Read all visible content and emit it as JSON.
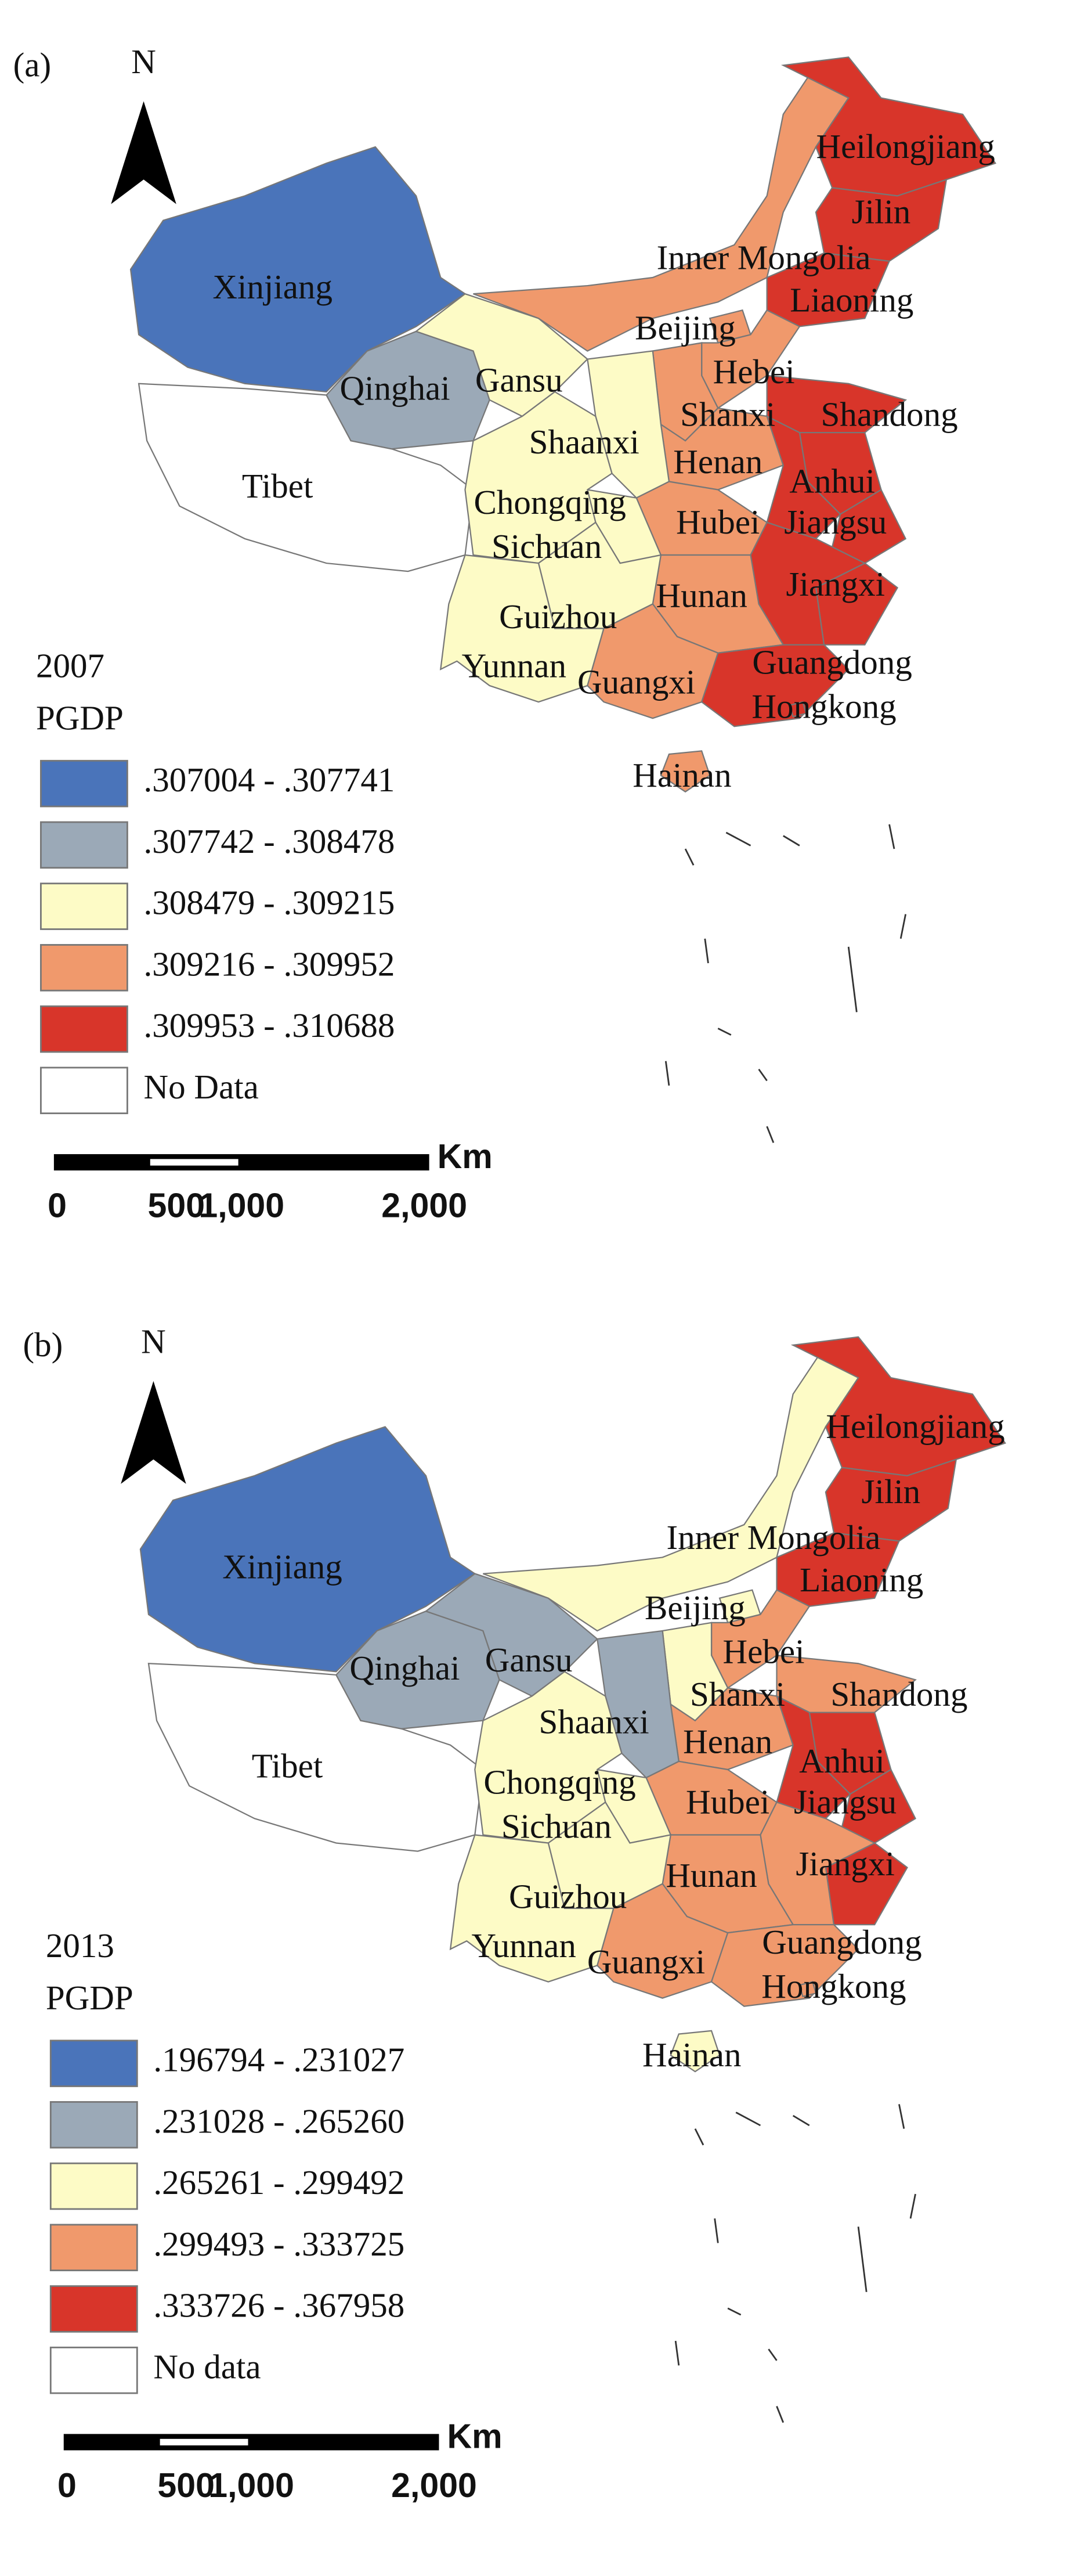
{
  "panels": [
    {
      "label": "(a)",
      "north": "N",
      "year": "2007",
      "legend_title": "PGDP",
      "legend": [
        {
          "label": ".307004 - .307741",
          "color": "#4a74ba"
        },
        {
          "label": ".307742 - .308478",
          "color": "#9ba9b7"
        },
        {
          "label": ".308479 - .309215",
          "color": "#fdfbc6"
        },
        {
          "label": ".309216 - .309952",
          "color": "#f0996c"
        },
        {
          "label": ".309953 - .310688",
          "color": "#d8352a"
        },
        {
          "label": "No Data",
          "color": "#ffffff"
        }
      ],
      "scale": {
        "unit": "Km",
        "ticks": [
          "0",
          "500",
          "1,000",
          "2,000"
        ]
      },
      "provinces": [
        {
          "name": "Xinjiang",
          "color": "#4a74ba"
        },
        {
          "name": "Tibet",
          "color": "#ffffff"
        },
        {
          "name": "Qinghai",
          "color": "#9ba9b7"
        },
        {
          "name": "Gansu",
          "color": "#fdfbc6"
        },
        {
          "name": "Inner Mongolia",
          "color": "#f0996c"
        },
        {
          "name": "Heilongjiang",
          "color": "#d8352a"
        },
        {
          "name": "Jilin",
          "color": "#d8352a"
        },
        {
          "name": "Liaoning",
          "color": "#d8352a"
        },
        {
          "name": "Beijing",
          "color": "#f0996c"
        },
        {
          "name": "Hebei",
          "color": "#f0996c"
        },
        {
          "name": "Shanxi",
          "color": "#f0996c"
        },
        {
          "name": "Shandong",
          "color": "#d8352a"
        },
        {
          "name": "Henan",
          "color": "#f0996c"
        },
        {
          "name": "Shaanxi",
          "color": "#fdfbc6"
        },
        {
          "name": "Jiangsu",
          "color": "#d8352a"
        },
        {
          "name": "Anhui",
          "color": "#d8352a"
        },
        {
          "name": "Hubei",
          "color": "#f0996c"
        },
        {
          "name": "Chongqing",
          "color": "#fdfbc6"
        },
        {
          "name": "Sichuan",
          "color": "#fdfbc6"
        },
        {
          "name": null,
          "color": "#d8352a"
        },
        {
          "name": null,
          "color": "#d8352a"
        },
        {
          "name": "Jiangxi",
          "color": "#d8352a"
        },
        {
          "name": "Hunan",
          "color": "#f0996c"
        },
        {
          "name": "Guizhou",
          "color": "#fdfbc6"
        },
        {
          "name": "Yunnan",
          "color": "#fdfbc6"
        },
        {
          "name": "Guangxi",
          "color": "#f0996c"
        },
        {
          "name": "Guangdong",
          "color": "#d8352a"
        },
        {
          "name": "Hainan",
          "color": "#f0996c"
        },
        {
          "name": "Hongkong",
          "color": "#d8352a"
        }
      ]
    },
    {
      "label": "(b)",
      "north": "N",
      "year": "2013",
      "legend_title": "PGDP",
      "legend": [
        {
          "label": ".196794 - .231027",
          "color": "#4a74ba"
        },
        {
          "label": ".231028 - .265260",
          "color": "#9ba9b7"
        },
        {
          "label": ".265261 - .299492",
          "color": "#fdfbc6"
        },
        {
          "label": ".299493 - .333725",
          "color": "#f0996c"
        },
        {
          "label": ".333726 - .367958",
          "color": "#d8352a"
        },
        {
          "label": "No data",
          "color": "#ffffff"
        }
      ],
      "scale": {
        "unit": "Km",
        "ticks": [
          "0",
          "500",
          "1,000",
          "2,000"
        ]
      },
      "provinces": [
        {
          "name": "Xinjiang",
          "color": "#4a74ba"
        },
        {
          "name": "Tibet",
          "color": "#ffffff"
        },
        {
          "name": "Qinghai",
          "color": "#9ba9b7"
        },
        {
          "name": "Gansu",
          "color": "#9ba9b7"
        },
        {
          "name": "Inner Mongolia",
          "color": "#fdfbc6"
        },
        {
          "name": "Heilongjiang",
          "color": "#d8352a"
        },
        {
          "name": "Jilin",
          "color": "#d8352a"
        },
        {
          "name": "Liaoning",
          "color": "#d8352a"
        },
        {
          "name": "Beijing",
          "color": "#fdfbc6"
        },
        {
          "name": "Hebei",
          "color": "#f0996c"
        },
        {
          "name": "Shanxi",
          "color": "#fdfbc6"
        },
        {
          "name": "Shandong",
          "color": "#f0996c"
        },
        {
          "name": "Henan",
          "color": "#f0996c"
        },
        {
          "name": "Shaanxi",
          "color": "#9ba9b7"
        },
        {
          "name": "Jiangsu",
          "color": "#d8352a"
        },
        {
          "name": "Anhui",
          "color": "#d8352a"
        },
        {
          "name": "Hubei",
          "color": "#f0996c"
        },
        {
          "name": "Chongqing",
          "color": "#fdfbc6"
        },
        {
          "name": "Sichuan",
          "color": "#fdfbc6"
        },
        {
          "name": null,
          "color": "#d8352a"
        },
        {
          "name": null,
          "color": "#d8352a"
        },
        {
          "name": "Jiangxi",
          "color": "#f0996c"
        },
        {
          "name": "Hunan",
          "color": "#f0996c"
        },
        {
          "name": "Guizhou",
          "color": "#fdfbc6"
        },
        {
          "name": "Yunnan",
          "color": "#fdfbc6"
        },
        {
          "name": "Guangxi",
          "color": "#f0996c"
        },
        {
          "name": "Guangdong",
          "color": "#f0996c"
        },
        {
          "name": "Hainan",
          "color": "#fdfbc6"
        },
        {
          "name": "Hongkong",
          "color": "#f0996c"
        }
      ]
    }
  ]
}
